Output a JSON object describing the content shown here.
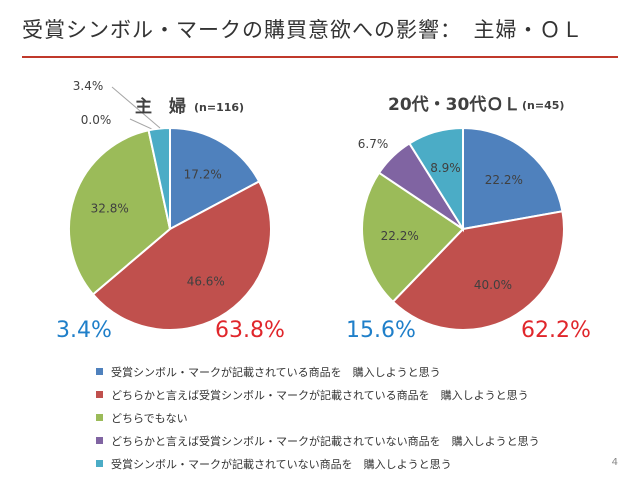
{
  "slide": {
    "title": "受賞シンボル・マークの購買意欲への影響：　主婦・ＯＬ",
    "page_number": "4"
  },
  "colors": [
    "#4f81bd",
    "#c0504d",
    "#9bbb59",
    "#8064a2",
    "#4bacc6"
  ],
  "chart_data": [
    {
      "type": "pie",
      "title_main": "主　婦",
      "title_n": "(n=116)",
      "slices": [
        {
          "value": 17.2,
          "label": "17.2%"
        },
        {
          "value": 46.6,
          "label": "46.6%"
        },
        {
          "value": 32.8,
          "label": "32.8%"
        },
        {
          "value": 0.0,
          "label": "0.0%"
        },
        {
          "value": 3.4,
          "label": "3.4%"
        }
      ],
      "summary_left": "3.4%",
      "summary_right": "63.8%"
    },
    {
      "type": "pie",
      "title_main": "20代・30代ＯＬ",
      "title_n": "(n=45)",
      "slices": [
        {
          "value": 22.2,
          "label": "22.2%"
        },
        {
          "value": 40.0,
          "label": "40.0%"
        },
        {
          "value": 22.2,
          "label": "22.2%"
        },
        {
          "value": 6.7,
          "label": "6.7%"
        },
        {
          "value": 8.9,
          "label": "8.9%"
        }
      ],
      "summary_left": "15.6%",
      "summary_right": "62.2%"
    }
  ],
  "legend": [
    "受賞シンボル・マークが記載されている商品を　購入しようと思う",
    "どちらかと言えば受賞シンボル・マークが記載されている商品を　購入しようと思う",
    "どちらでもない",
    "どちらかと言えば受賞シンボル・マークが記載されていない商品を　購入しようと思う",
    "受賞シンボル・マークが記載されていない商品を　購入しようと思う"
  ]
}
